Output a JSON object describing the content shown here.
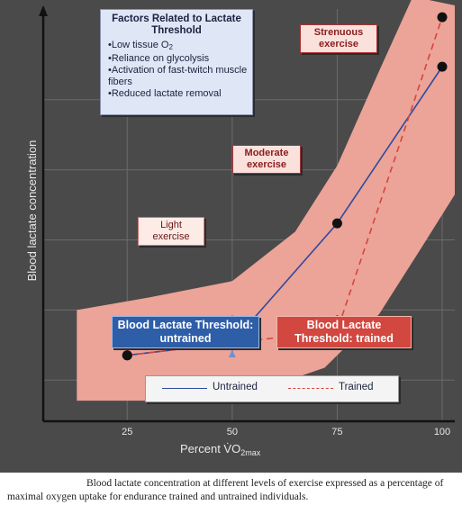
{
  "factors": {
    "title": "Factors Related to Lactate Threshold",
    "items": [
      "Low tissue O2",
      "Reliance on glycolysis",
      "Activation of fast-twitch muscle fibers",
      "Reduced lactate removal"
    ]
  },
  "zones": {
    "light": "Light exercise",
    "moderate": "Moderate exercise",
    "strenuous": "Strenuous exercise"
  },
  "thresholds": {
    "untrained": "Blood Lactate Threshold: untrained",
    "trained": "Blood Lactate Threshold: trained"
  },
  "legend": {
    "untrained": "Untrained",
    "trained": "Trained"
  },
  "caption": "Blood lactate concentration at different levels of exercise expressed as a percentage of maximal oxygen uptake for endurance trained and untrained individuals.",
  "colors": {
    "background": "#4a4a4a",
    "band": "#f4a89c",
    "untrained": "#2e4a9e",
    "trained": "#d2473f",
    "grid": "#6a6a6a"
  },
  "chart_data": {
    "type": "line",
    "xlabel": "Percent VO2max",
    "ylabel": "Blood lactate concentration",
    "x_ticks": [
      25,
      50,
      75,
      100
    ],
    "xlim": [
      5,
      103
    ],
    "ylim": [
      0,
      10
    ],
    "grid": true,
    "legend": "bottom-center",
    "series": [
      {
        "name": "Untrained",
        "style": "solid",
        "x": [
          25,
          50,
          75,
          100
        ],
        "y": [
          1.6,
          1.9,
          4.8,
          8.6
        ]
      },
      {
        "name": "Trained",
        "style": "dashed",
        "x": [
          25,
          50,
          75,
          100
        ],
        "y": [
          1.6,
          1.9,
          2.2,
          9.8
        ]
      }
    ]
  }
}
